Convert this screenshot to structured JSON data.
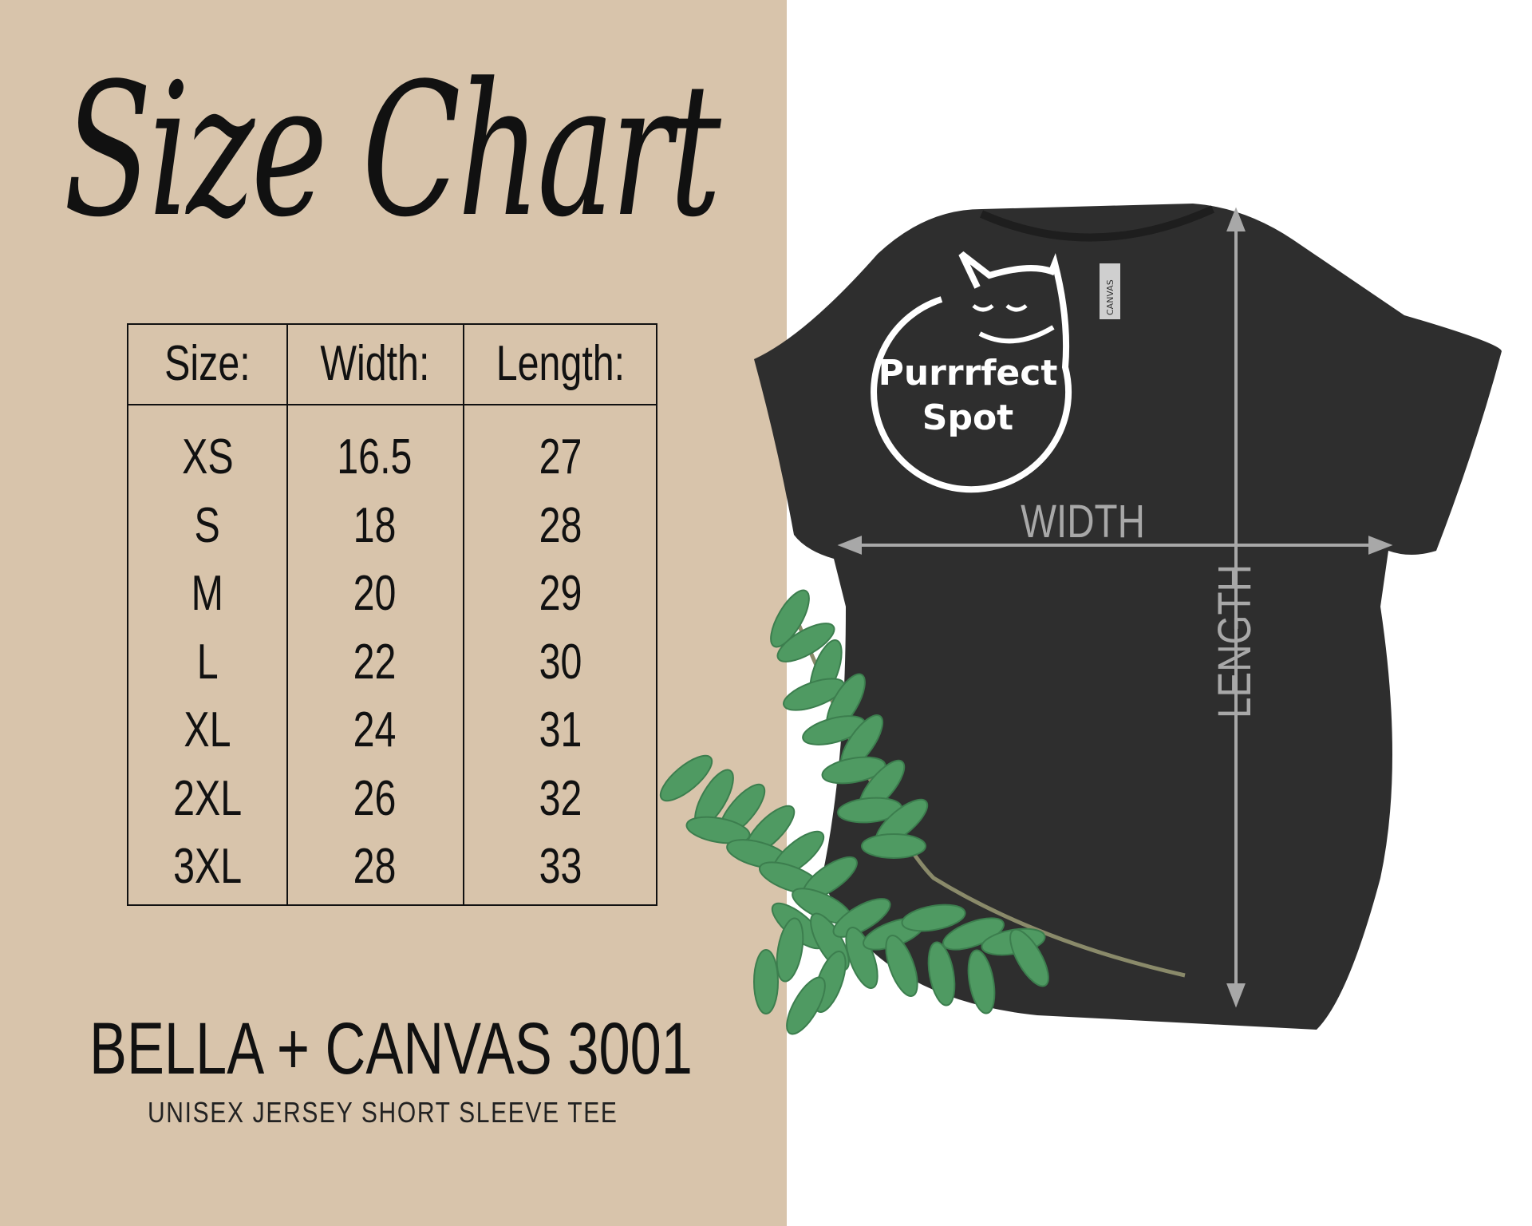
{
  "title": "Size Chart",
  "table": {
    "headers": [
      "Size:",
      "Width:",
      "Length:"
    ],
    "rows": [
      [
        "XS",
        "16.5",
        "27"
      ],
      [
        "S",
        "18",
        "28"
      ],
      [
        "M",
        "20",
        "29"
      ],
      [
        "L",
        "22",
        "30"
      ],
      [
        "XL",
        "24",
        "31"
      ],
      [
        "2XL",
        "26",
        "32"
      ],
      [
        "3XL",
        "28",
        "33"
      ]
    ]
  },
  "product": {
    "brand": "BELLA + CANVAS 3001",
    "description": "UNISEX JERSEY SHORT SLEEVE TEE"
  },
  "shirt": {
    "width_label": "WIDTH",
    "length_label": "LENGTH",
    "logo_line1": "Purrrfect",
    "logo_line2": "Spot",
    "neck_tag": "CANVAS",
    "color": "#2e2e2e"
  },
  "colors": {
    "panel": "#d8c4ab",
    "leaf": "#4f9a62",
    "arrow": "#a8a8a8"
  }
}
